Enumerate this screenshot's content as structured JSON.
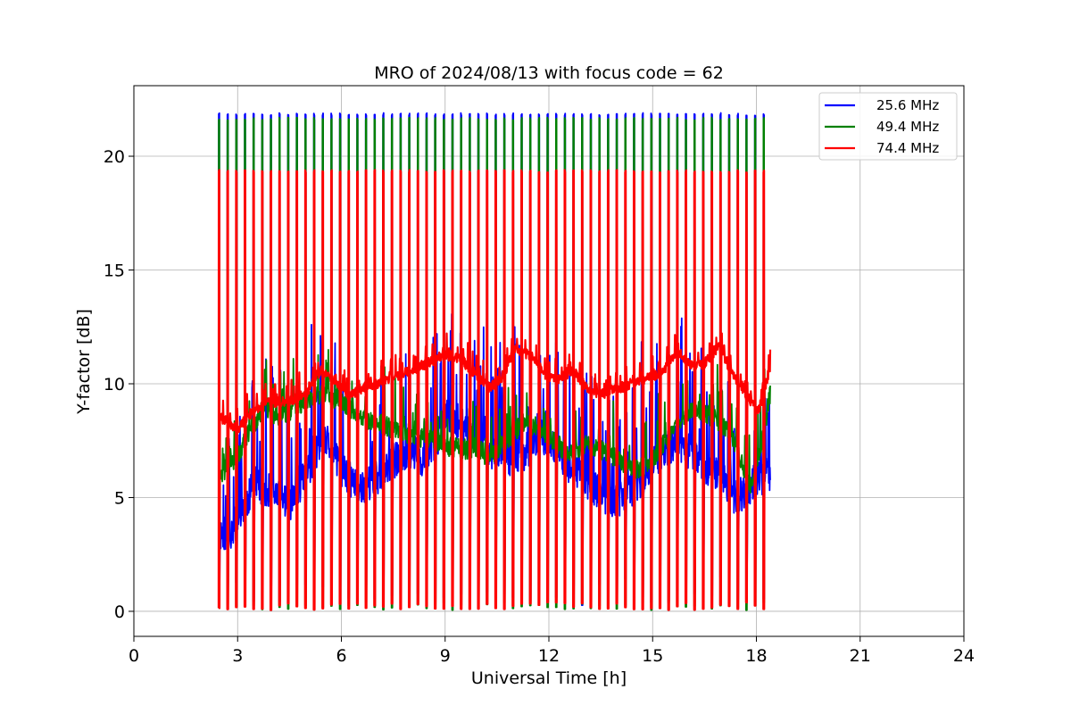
{
  "chart_data": {
    "type": "line",
    "title": "MRO of 2024/08/13 with focus code = 62",
    "xlabel": "Universal Time [h]",
    "ylabel": "Y-factor [dB]",
    "xlim": [
      0,
      24
    ],
    "ylim": [
      -1.1,
      23.1
    ],
    "xticks": [
      0,
      3,
      6,
      9,
      12,
      15,
      18,
      21,
      24
    ],
    "yticks": [
      0,
      5,
      10,
      15,
      20
    ],
    "grid": true,
    "legend_position": "top-right",
    "data_start_h": 2.45,
    "data_end_h": 18.4,
    "calibration_cycle_h": 0.25,
    "series": [
      {
        "name": "    25.6 MHz",
        "color": "#0000ff",
        "peak": 21.9,
        "baseline": [
          [
            2.45,
            3.4
          ],
          [
            2.8,
            3.5
          ],
          [
            3.1,
            4.3
          ],
          [
            3.5,
            5.6
          ],
          [
            3.8,
            5.4
          ],
          [
            4.1,
            5.0
          ],
          [
            4.6,
            4.8
          ],
          [
            5.0,
            6.1
          ],
          [
            5.3,
            7.0
          ],
          [
            5.6,
            7.4
          ],
          [
            6.0,
            6.2
          ],
          [
            6.5,
            5.4
          ],
          [
            7.0,
            5.8
          ],
          [
            7.5,
            6.6
          ],
          [
            8.0,
            7.1
          ],
          [
            8.4,
            6.6
          ],
          [
            8.7,
            7.3
          ],
          [
            9.0,
            8.6
          ],
          [
            9.3,
            8.4
          ],
          [
            9.6,
            8.0
          ],
          [
            10.0,
            7.5
          ],
          [
            10.4,
            7.0
          ],
          [
            10.8,
            6.7
          ],
          [
            11.3,
            7.0
          ],
          [
            11.8,
            7.7
          ],
          [
            12.2,
            7.3
          ],
          [
            12.5,
            6.5
          ],
          [
            12.9,
            6.0
          ],
          [
            13.4,
            5.3
          ],
          [
            13.9,
            4.8
          ],
          [
            14.3,
            5.2
          ],
          [
            14.8,
            6.0
          ],
          [
            15.2,
            6.8
          ],
          [
            15.7,
            7.5
          ],
          [
            16.1,
            7.0
          ],
          [
            16.5,
            6.3
          ],
          [
            17.0,
            5.8
          ],
          [
            17.4,
            5.0
          ],
          [
            17.7,
            5.2
          ],
          [
            18.0,
            5.8
          ],
          [
            18.4,
            6.0
          ]
        ]
      },
      {
        "name": "    49.4 MHz",
        "color": "#008000",
        "peak": 21.7,
        "baseline": [
          [
            2.45,
            6.0
          ],
          [
            2.7,
            6.3
          ],
          [
            3.0,
            6.8
          ],
          [
            3.3,
            7.8
          ],
          [
            3.6,
            8.6
          ],
          [
            3.8,
            9.0
          ],
          [
            4.1,
            8.6
          ],
          [
            4.5,
            8.8
          ],
          [
            5.0,
            9.3
          ],
          [
            5.5,
            9.6
          ],
          [
            5.9,
            9.3
          ],
          [
            6.3,
            8.8
          ],
          [
            6.8,
            8.4
          ],
          [
            7.2,
            8.2
          ],
          [
            7.7,
            7.9
          ],
          [
            8.1,
            7.7
          ],
          [
            8.6,
            7.6
          ],
          [
            9.0,
            7.3
          ],
          [
            9.5,
            7.1
          ],
          [
            9.9,
            7.2
          ],
          [
            10.3,
            6.7
          ],
          [
            10.8,
            7.6
          ],
          [
            11.3,
            8.3
          ],
          [
            11.8,
            8.0
          ],
          [
            12.2,
            7.4
          ],
          [
            12.6,
            6.9
          ],
          [
            13.0,
            7.3
          ],
          [
            13.5,
            7.1
          ],
          [
            14.0,
            6.7
          ],
          [
            14.4,
            6.2
          ],
          [
            14.9,
            6.4
          ],
          [
            15.3,
            7.3
          ],
          [
            15.8,
            8.4
          ],
          [
            16.2,
            9.1
          ],
          [
            16.6,
            8.6
          ],
          [
            17.0,
            8.3
          ],
          [
            17.4,
            7.4
          ],
          [
            17.8,
            5.5
          ],
          [
            18.1,
            6.9
          ],
          [
            18.4,
            9.6
          ]
        ]
      },
      {
        "name": "    74.4 MHz",
        "color": "#ff0000",
        "peak": 19.4,
        "baseline": [
          [
            2.45,
            8.6
          ],
          [
            2.7,
            8.3
          ],
          [
            3.0,
            8.0
          ],
          [
            3.3,
            8.6
          ],
          [
            3.7,
            9.1
          ],
          [
            4.1,
            9.2
          ],
          [
            4.6,
            9.3
          ],
          [
            5.0,
            9.6
          ],
          [
            5.4,
            10.6
          ],
          [
            5.8,
            10.2
          ],
          [
            6.2,
            9.5
          ],
          [
            6.6,
            9.8
          ],
          [
            7.0,
            10.0
          ],
          [
            7.5,
            10.3
          ],
          [
            8.0,
            10.6
          ],
          [
            8.5,
            10.9
          ],
          [
            9.0,
            11.3
          ],
          [
            9.5,
            11.0
          ],
          [
            9.9,
            10.4
          ],
          [
            10.3,
            9.8
          ],
          [
            10.7,
            10.4
          ],
          [
            11.0,
            11.6
          ],
          [
            11.5,
            11.2
          ],
          [
            11.9,
            10.4
          ],
          [
            12.3,
            10.2
          ],
          [
            12.7,
            10.6
          ],
          [
            13.1,
            9.8
          ],
          [
            13.5,
            9.5
          ],
          [
            13.9,
            9.8
          ],
          [
            14.3,
            9.9
          ],
          [
            14.8,
            10.2
          ],
          [
            15.3,
            10.5
          ],
          [
            15.7,
            11.4
          ],
          [
            16.1,
            10.8
          ],
          [
            16.5,
            10.9
          ],
          [
            16.9,
            11.6
          ],
          [
            17.3,
            10.5
          ],
          [
            17.7,
            9.5
          ],
          [
            18.1,
            8.8
          ],
          [
            18.4,
            10.8
          ]
        ]
      }
    ]
  }
}
